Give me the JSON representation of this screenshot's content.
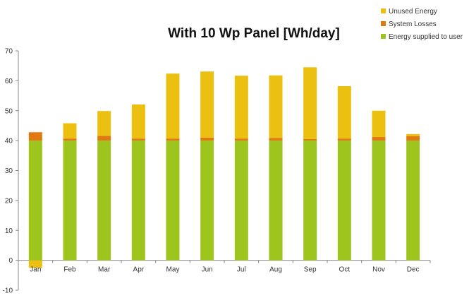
{
  "chart_data": {
    "type": "bar",
    "stacked": true,
    "title": "With 10 Wp Panel  [Wh/day]",
    "xlabel": "",
    "ylabel": "",
    "categories": [
      "Jan",
      "Feb",
      "Mar",
      "Apr",
      "May",
      "Jun",
      "Jul",
      "Aug",
      "Sep",
      "Oct",
      "Nov",
      "Dec"
    ],
    "ylim": [
      -10,
      70
    ],
    "yticks": [
      -10,
      0,
      10,
      20,
      30,
      40,
      50,
      60,
      70
    ],
    "grid": false,
    "legend_position": "top-right",
    "series": [
      {
        "name": "Energy supplied to user",
        "color": "#9ec41e",
        "values": [
          40,
          40,
          40,
          40,
          40,
          40,
          40,
          40,
          40,
          40,
          40,
          40
        ]
      },
      {
        "name": "System Losses",
        "color": "#e07a10",
        "values": [
          2.8,
          0.7,
          1.6,
          0.7,
          0.7,
          1.0,
          0.7,
          0.9,
          0.5,
          0.7,
          1.2,
          1.5
        ]
      },
      {
        "name": "Unused Energy",
        "color": "#ecc010",
        "values": [
          -2.5,
          5.1,
          8.3,
          11.4,
          21.7,
          22.1,
          21.0,
          20.9,
          24.0,
          17.5,
          8.8,
          0.7
        ]
      }
    ],
    "legend_order": [
      "Unused Energy",
      "System Losses",
      "Energy supplied to user"
    ]
  }
}
